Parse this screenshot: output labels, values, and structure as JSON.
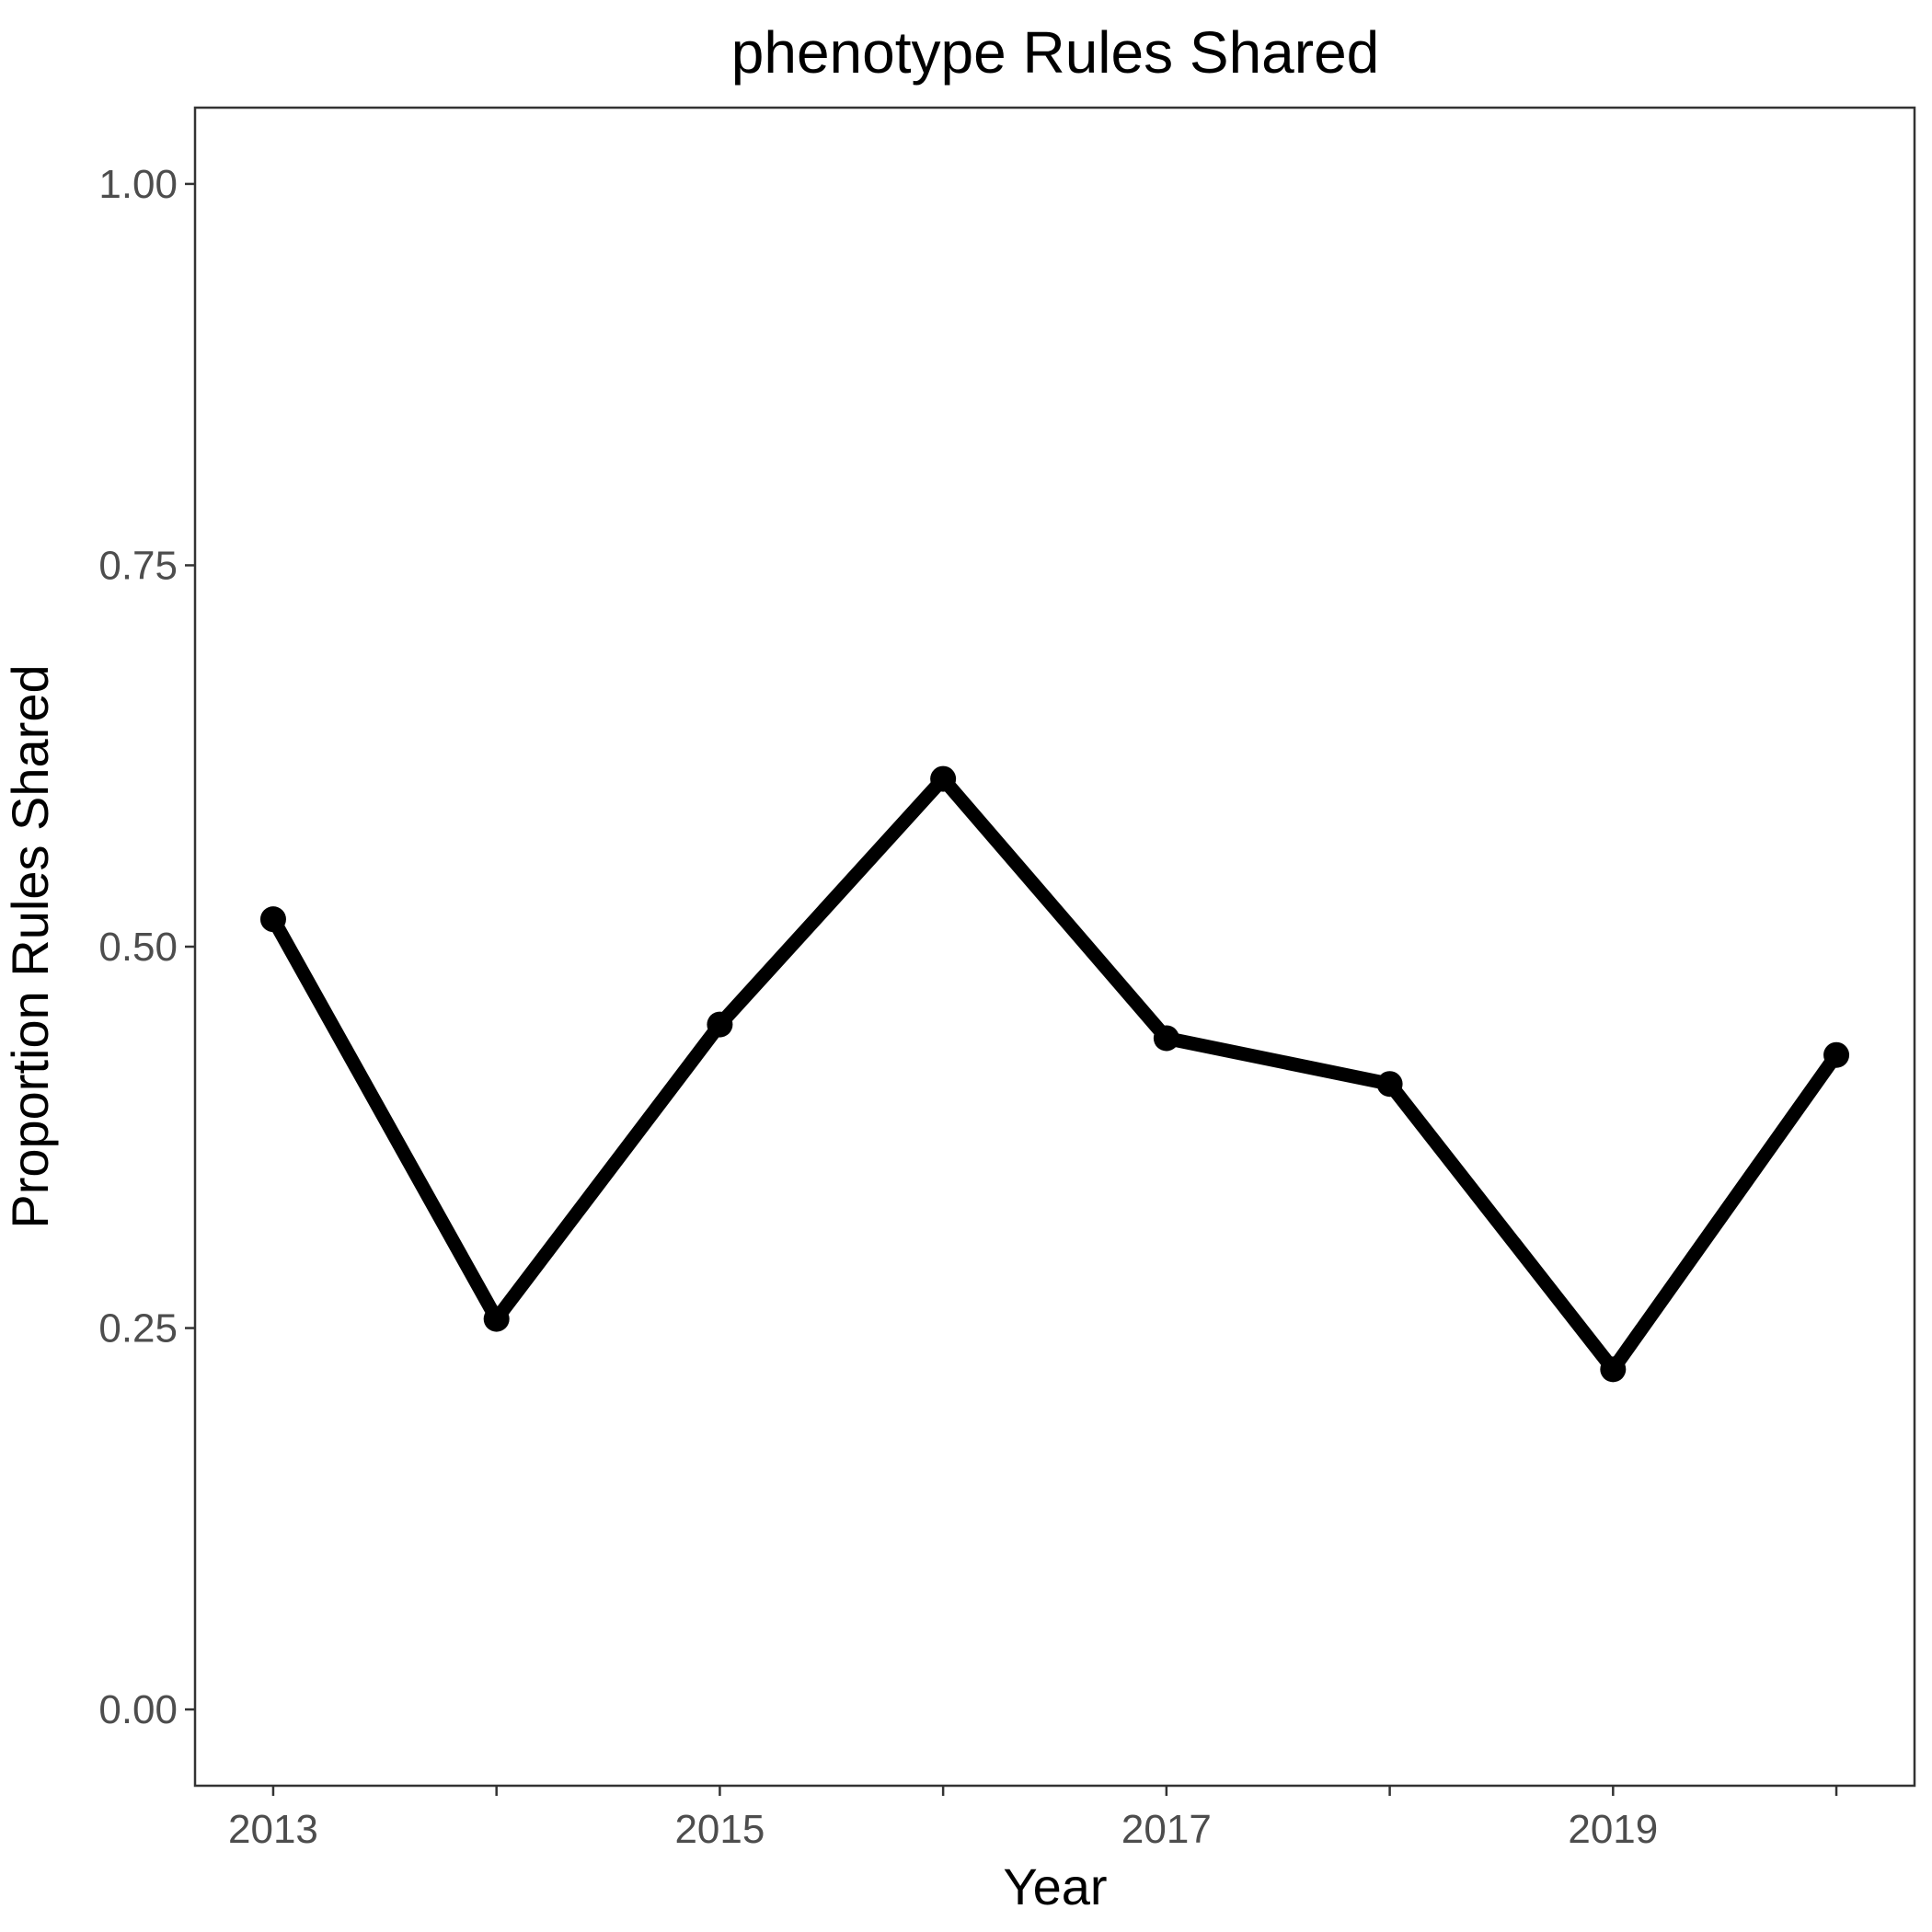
{
  "chart_data": {
    "type": "line",
    "title": "phenotype Rules Shared",
    "xlabel": "Year",
    "ylabel": "Proportion Rules Shared",
    "x": [
      2013,
      2014,
      2015,
      2016,
      2017,
      2018,
      2019,
      2020
    ],
    "series": [
      {
        "values": [
          0.518,
          0.256,
          0.449,
          0.61,
          0.44,
          0.41,
          0.223,
          0.429
        ],
        "color": "#000000"
      }
    ],
    "xlim": [
      2012.65,
      2020.35
    ],
    "ylim": [
      -0.05,
      1.05
    ],
    "xticks": [
      2013,
      2015,
      2017,
      2019
    ],
    "xtick_labels": [
      "2013",
      "2015",
      "2017",
      "2019"
    ],
    "yticks": [
      0,
      0.25,
      0.5,
      0.75,
      1
    ],
    "ytick_labels": [
      "0.00",
      "0.25",
      "0.50",
      "0.75",
      "1.00"
    ],
    "grid": false,
    "legend": "none"
  }
}
